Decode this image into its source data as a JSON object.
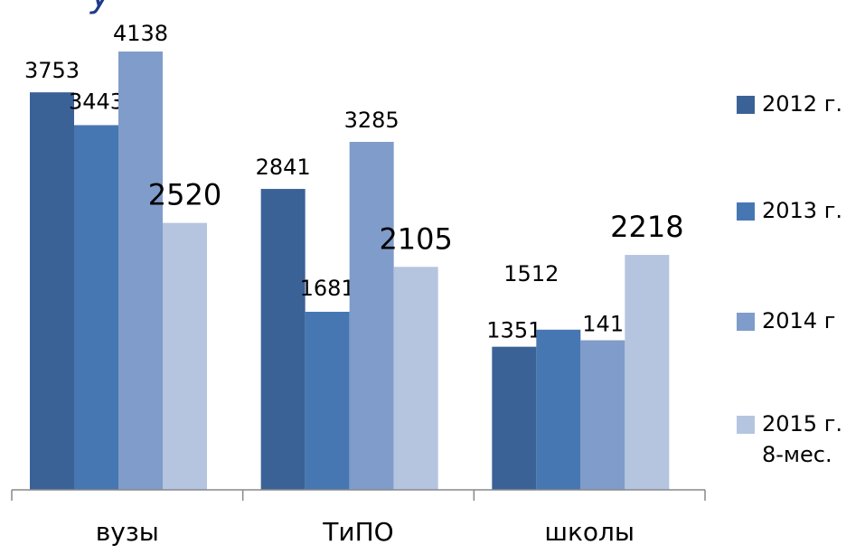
{
  "title_fragment": "у",
  "chart_data": {
    "type": "bar",
    "categories": [
      "вузы",
      "ТиПО",
      "школы"
    ],
    "series": [
      {
        "name": "2012 г.",
        "values": [
          3753,
          2841,
          1351
        ],
        "color": "#3b6296"
      },
      {
        "name": "2013 г.",
        "values": [
          3443,
          1681,
          1512
        ],
        "color": "#4677b2"
      },
      {
        "name": "2014 г",
        "values": [
          4138,
          3285,
          1412
        ],
        "color": "#7f9cca"
      },
      {
        "name": "2015 г.\n8-мес.",
        "values": [
          2520,
          2105,
          2218
        ],
        "color": "#b5c5e0"
      }
    ],
    "ylim": [
      0,
      4500
    ],
    "grid": false,
    "legend_position": "right",
    "data_label_font_sizes": [
      24,
      24,
      24,
      32
    ]
  }
}
